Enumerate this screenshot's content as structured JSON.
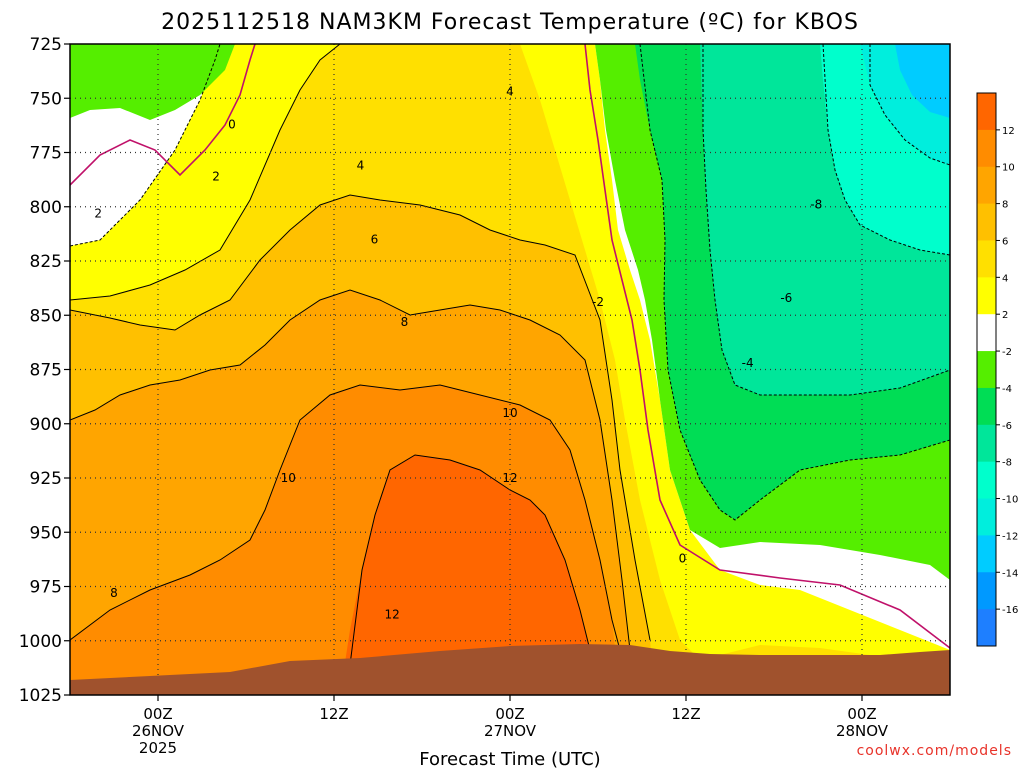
{
  "chart_data": {
    "type": "heatmap",
    "title": "2025112518 NAM3KM Forecast Temperature (ºC) for KBOS",
    "xlabel": "Forecast Time (UTC)",
    "ylabel": "",
    "y_ticks": [
      "725",
      "750",
      "775",
      "800",
      "825",
      "850",
      "875",
      "900",
      "925",
      "950",
      "975",
      "1000",
      "1025"
    ],
    "y_values": [
      725,
      750,
      775,
      800,
      825,
      850,
      875,
      900,
      925,
      950,
      975,
      1000,
      1025
    ],
    "ylim": [
      1025,
      725
    ],
    "xlim": [
      -5,
      45
    ],
    "x_ticks": [
      {
        "hour": 0,
        "lines": [
          "00Z",
          "26NOV",
          "2025"
        ]
      },
      {
        "hour": 10,
        "lines": [
          "12Z"
        ]
      },
      {
        "hour": 20,
        "lines": [
          "00Z",
          "27NOV"
        ]
      },
      {
        "hour": 30,
        "lines": [
          "12Z"
        ]
      },
      {
        "hour": 40,
        "lines": [
          "00Z",
          "28NOV"
        ]
      }
    ],
    "colorbar": {
      "labels": [
        "12",
        "10",
        "8",
        "6",
        "4",
        "2",
        "-2",
        "-4",
        "-6",
        "-8",
        "-10",
        "-12",
        "-14",
        "-16"
      ],
      "bands": [
        "#ff6600",
        "#ff8c00",
        "#ffa500",
        "#ffc000",
        "#ffe000",
        "#ffff00",
        "#ffffff",
        "#55ee00",
        "#00dd55",
        "#00e69a",
        "#00ffcc",
        "#00eedd",
        "#00ccff",
        "#0099ff",
        "#1e7fff"
      ]
    },
    "contour_labels": [
      {
        "text": "0",
        "hour": 4.2,
        "p": 762
      },
      {
        "text": "2",
        "hour": 3.3,
        "p": 786
      },
      {
        "text": "2",
        "hour": -3.4,
        "p": 803
      },
      {
        "text": "4",
        "hour": 11.5,
        "p": 781
      },
      {
        "text": "4",
        "hour": 20.0,
        "p": 747
      },
      {
        "text": "6",
        "hour": 12.3,
        "p": 815
      },
      {
        "text": "8",
        "hour": 14.0,
        "p": 853
      },
      {
        "text": "8",
        "hour": -2.5,
        "p": 978
      },
      {
        "text": "10",
        "hour": 7.4,
        "p": 925
      },
      {
        "text": "10",
        "hour": 20.0,
        "p": 895
      },
      {
        "text": "12",
        "hour": 20.0,
        "p": 925
      },
      {
        "text": "12",
        "hour": 13.3,
        "p": 988
      },
      {
        "text": "-2",
        "hour": 25.0,
        "p": 844
      },
      {
        "text": "-4",
        "hour": 33.5,
        "p": 872
      },
      {
        "text": "-6",
        "hour": 35.7,
        "p": 842
      },
      {
        "text": "-8",
        "hour": 37.4,
        "p": 799
      },
      {
        "text": "0",
        "hour": 29.8,
        "p": 962
      }
    ],
    "levels": [
      {
        "temp": "12",
        "color": "#ff6600"
      },
      {
        "temp": "10",
        "color": "#ff8c00"
      },
      {
        "temp": "8",
        "color": "#ffa500"
      },
      {
        "temp": "6",
        "color": "#ffc000"
      },
      {
        "temp": "4",
        "color": "#ffe000"
      },
      {
        "temp": "2",
        "color": "#ffff00"
      },
      {
        "temp": "0",
        "color": "#ffffff"
      },
      {
        "temp": "-2",
        "color": "#55ee00"
      },
      {
        "temp": "-4",
        "color": "#00dd55"
      },
      {
        "temp": "-6",
        "color": "#00e69a"
      },
      {
        "temp": "-8",
        "color": "#00ffcc"
      },
      {
        "temp": "-10",
        "color": "#00eedd"
      },
      {
        "temp": "-12",
        "color": "#00ccff"
      }
    ],
    "ground_color": "#a0522d"
  },
  "credit": "coolwx.com/models"
}
